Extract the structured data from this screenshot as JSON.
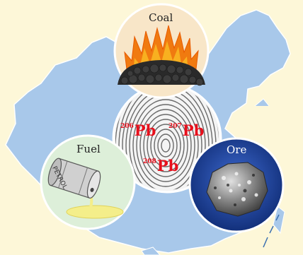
{
  "labels": {
    "coal": "Coal",
    "fuel": "Fuel",
    "ore": "Ore",
    "barrel_text": "PETROL"
  },
  "isotopes": [
    {
      "mass": "206",
      "symbol": "Pb"
    },
    {
      "mass": "207",
      "symbol": "Pb"
    },
    {
      "mass": "208",
      "symbol": "Pb"
    }
  ],
  "colors": {
    "background": "#fdf7d8",
    "map_fill": "#a8c8ea",
    "isotope_text": "#e8101c",
    "coal_circle": "#f8e6c8",
    "fuel_circle": "#ddefd9",
    "ore_circle": "#1a3a8a",
    "fingerprint_circle": "#f4f4f4"
  },
  "icons": [
    "china-map-icon",
    "coal-fire-icon",
    "fingerprint-icon",
    "oil-barrel-icon",
    "ore-rock-icon"
  ]
}
